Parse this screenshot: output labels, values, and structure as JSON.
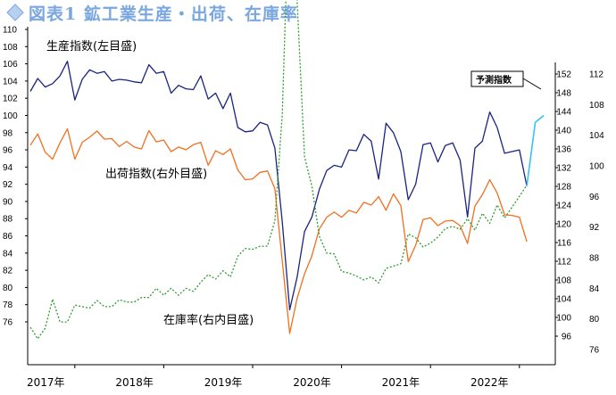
{
  "title": "図表1 鉱工業生産・出荷、在庫率",
  "icon": "diamond-icon",
  "chart_data": {
    "type": "line",
    "annotations": {
      "production": "生産指数(左目盛)",
      "shipments": "出荷指数(右外目盛)",
      "inventory": "在庫率(右内目盛)",
      "forecast": "予測指数"
    },
    "x_labels": [
      "2017年",
      "2018年",
      "2019年",
      "2020年",
      "2021年",
      "2022年"
    ],
    "left_axis": {
      "min": 76,
      "max": 110,
      "step": 2
    },
    "right_outer_axis": {
      "min": 96,
      "max": 152,
      "step": 4
    },
    "right_inner_axis": {
      "min": 76,
      "max": 112,
      "step": 4
    },
    "colors": {
      "production": "#1a237e",
      "shipments": "#f07020",
      "inventory": "#2e9c2e",
      "forecast": "#33c4f0"
    },
    "series": [
      {
        "key": "production",
        "axis": "left",
        "values": [
          102.8,
          104.3,
          103.3,
          103.7,
          104.6,
          106.3,
          101.8,
          104.2,
          105.3,
          104.9,
          105.1,
          104.0,
          104.2,
          104.1,
          103.9,
          103.8,
          105.9,
          104.9,
          105.1,
          102.6,
          103.5,
          103.1,
          103.0,
          104.6,
          101.9,
          102.6,
          100.8,
          102.6,
          98.6,
          98.1,
          98.2,
          99.2,
          98.9,
          96.2,
          87.6,
          77.4,
          81.2,
          86.5,
          88.2,
          91.4,
          93.6,
          94.2,
          94.0,
          96.0,
          95.9,
          97.8,
          97.0,
          92.6,
          99.1,
          98.0,
          95.8,
          90.2,
          92.0,
          96.6,
          96.8,
          94.6,
          96.5,
          96.8,
          94.8,
          88.2,
          96.2,
          97.0,
          100.4,
          98.6,
          95.6,
          95.8,
          96.0,
          91.8
        ]
      },
      {
        "key": "shipments",
        "axis": "right_outer",
        "values": [
          136.8,
          139.2,
          135.3,
          133.8,
          137.3,
          140.3,
          133.8,
          137.4,
          138.5,
          139.8,
          138.1,
          138.2,
          136.5,
          137.6,
          136.4,
          136.0,
          139.9,
          137.5,
          137.9,
          135.4,
          136.4,
          135.8,
          136.9,
          137.4,
          132.5,
          135.6,
          134.8,
          136.0,
          131.5,
          129.4,
          129.6,
          131.0,
          131.3,
          127.5,
          112.0,
          96.6,
          104.1,
          109.3,
          113.2,
          118.9,
          121.4,
          122.5,
          121.4,
          122.9,
          122.3,
          124.6,
          124.0,
          125.8,
          122.9,
          126.4,
          123.9,
          111.9,
          115.4,
          120.9,
          121.3,
          119.6,
          120.6,
          120.7,
          119.6,
          115.8,
          123.8,
          126.2,
          129.4,
          126.6,
          121.9,
          121.8,
          121.4,
          116.2
        ]
      },
      {
        "key": "inventory",
        "axis": "right_inner",
        "values": [
          78.9,
          77.4,
          78.8,
          82.6,
          79.6,
          79.6,
          81.8,
          81.6,
          81.4,
          82.4,
          81.6,
          81.6,
          82.5,
          82.2,
          82.2,
          82.8,
          82.8,
          84.0,
          83.1,
          84.0,
          83.1,
          84.0,
          83.6,
          84.8,
          85.8,
          85.2,
          86.3,
          85.5,
          88.2,
          89.2,
          89.1,
          89.5,
          89.5,
          92.8,
          106.8,
          137.6,
          121.6,
          101.2,
          97.3,
          90.8,
          88.6,
          88.5,
          86.2,
          86.0,
          85.6,
          85.1,
          85.5,
          84.7,
          86.6,
          86.9,
          87.2,
          91.1,
          90.6,
          89.4,
          89.9,
          90.7,
          91.8,
          92.1,
          91.7,
          93.1,
          91.6,
          93.8,
          92.5,
          94.9,
          93.2,
          94.6,
          96.0,
          97.5
        ]
      },
      {
        "key": "forecast",
        "axis": "left",
        "values": [
          91.8,
          99.2,
          100.0
        ]
      }
    ]
  }
}
